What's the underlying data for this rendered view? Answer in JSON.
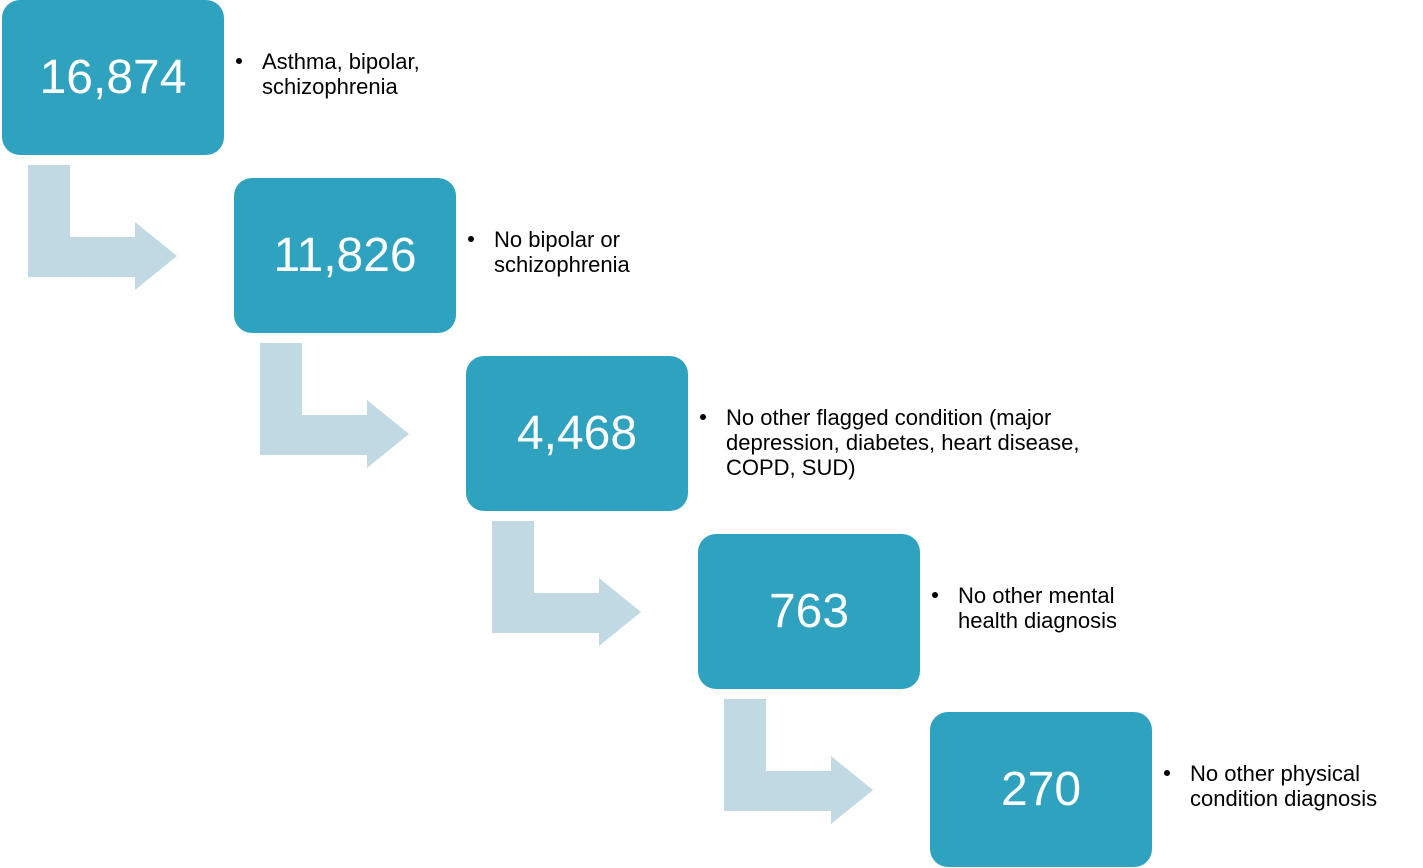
{
  "steps": [
    {
      "label": "16,874",
      "text": "Asthma, bipolar, schizophrenia"
    },
    {
      "label": "11,826",
      "text": "No bipolar or schizophrenia"
    },
    {
      "label": "4,468",
      "text": "No other flagged condition (major depression, diabetes, heart disease, COPD, SUD)"
    },
    {
      "label": "763",
      "text": "No other mental health diagnosis"
    },
    {
      "label": "270",
      "text": "No other physical condition diagnosis"
    }
  ]
}
